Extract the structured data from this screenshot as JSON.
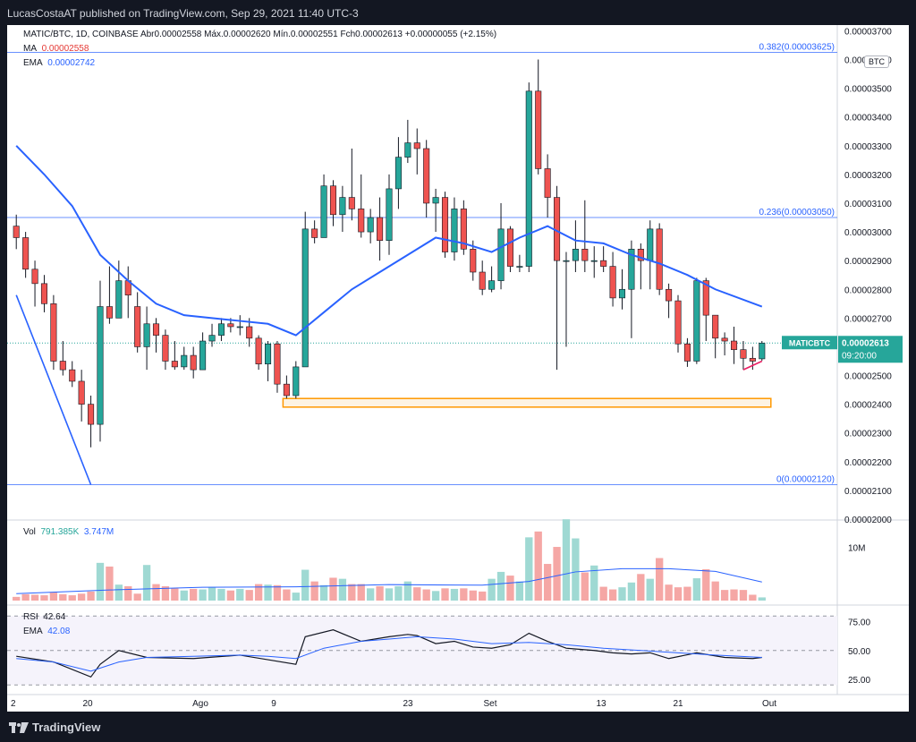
{
  "header": {
    "published": "LucasCostaAT published on TradingView.com, Sep 29, 2021 11:40 UTC-3"
  },
  "footer": {
    "brand": "TradingView"
  },
  "legend": {
    "line1": "MATIC/BTC, 1D, COINBASE  Abr0.00002558  Máx.0.00002620  Mín.0.00002551  Fch0.00002613  +0.00000055 (+2.15%)",
    "ma_label": "MA",
    "ma_value": "0.00002558",
    "ema_label": "EMA",
    "ema_value": "0.00002742",
    "vol_label": "Vol",
    "vol_value1": "791.385K",
    "vol_value2": "3.747M",
    "rsi_label": "RSI",
    "rsi_value": "42.64",
    "rsi_ema_label": "EMA",
    "rsi_ema_value": "42.08"
  },
  "currency": "BTC",
  "price_tag": {
    "symbol": "MATICBTC",
    "price": "0.00002613",
    "countdown": "09:20:00"
  },
  "fib_labels": [
    "0.382(0.00003625)",
    "0.236(0.00003050)",
    "0(0.00002120)"
  ],
  "price_ticks": [
    "0.00003700",
    "0.00003600",
    "0.00003500",
    "0.00003400",
    "0.00003300",
    "0.00003200",
    "0.00003100",
    "0.00003000",
    "0.00002900",
    "0.00002800",
    "0.00002700",
    "0.00002600",
    "0.00002500",
    "0.00002400",
    "0.00002300",
    "0.00002200",
    "0.00002100",
    "0.00002000"
  ],
  "vol_tick": "10M",
  "rsi_ticks": [
    "75.00",
    "50.00",
    "25.00"
  ],
  "date_ticks": [
    "2",
    "20",
    "Ago",
    "9",
    "23",
    "Set",
    "13",
    "21",
    "Out"
  ],
  "colors": {
    "up": "#26a69a",
    "down": "#ef5350",
    "ema": "#2962ff",
    "fib": "#2962ff",
    "zone": "#ff9800",
    "trend": "#e91e63",
    "rsi": "#131722"
  },
  "chart_data": {
    "type": "candlestick",
    "pair": "MATIC/BTC",
    "timeframe": "1D",
    "ylim": [
      2e-05,
      3.72e-05
    ],
    "fib_levels": [
      3.625e-05,
      3.05e-05,
      2.12e-05
    ],
    "support_zone": [
      2.39e-05,
      2.42e-05
    ],
    "last_close": 2.613e-05,
    "candles": [
      [
        3.02,
        2.98,
        3.06,
        2.94
      ],
      [
        2.98,
        2.87,
        3.0,
        2.84
      ],
      [
        2.87,
        2.82,
        2.9,
        2.74
      ],
      [
        2.82,
        2.75,
        2.85,
        2.72
      ],
      [
        2.75,
        2.55,
        2.78,
        2.52
      ],
      [
        2.55,
        2.52,
        2.62,
        2.5
      ],
      [
        2.52,
        2.48,
        2.55,
        2.46
      ],
      [
        2.48,
        2.4,
        2.52,
        2.34
      ],
      [
        2.4,
        2.33,
        2.43,
        2.25
      ],
      [
        2.33,
        2.74,
        2.83,
        2.27
      ],
      [
        2.74,
        2.7,
        2.88,
        2.68
      ],
      [
        2.7,
        2.83,
        2.9,
        2.7
      ],
      [
        2.83,
        2.78,
        2.88,
        2.7
      ],
      [
        2.74,
        2.6,
        2.79,
        2.58
      ],
      [
        2.6,
        2.68,
        2.74,
        2.52
      ],
      [
        2.68,
        2.64,
        2.7,
        2.58
      ],
      [
        2.64,
        2.55,
        2.66,
        2.52
      ],
      [
        2.55,
        2.53,
        2.62,
        2.52
      ],
      [
        2.53,
        2.57,
        2.6,
        2.52
      ],
      [
        2.57,
        2.52,
        2.6,
        2.49
      ],
      [
        2.52,
        2.62,
        2.65,
        2.52
      ],
      [
        2.62,
        2.64,
        2.68,
        2.6
      ],
      [
        2.64,
        2.68,
        2.7,
        2.62
      ],
      [
        2.68,
        2.67,
        2.7,
        2.65
      ],
      [
        2.67,
        2.67,
        2.71,
        2.64
      ],
      [
        2.67,
        2.63,
        2.7,
        2.6
      ],
      [
        2.63,
        2.54,
        2.64,
        2.52
      ],
      [
        2.54,
        2.61,
        2.62,
        2.48
      ],
      [
        2.61,
        2.47,
        2.62,
        2.44
      ],
      [
        2.47,
        2.43,
        2.5,
        2.42
      ],
      [
        2.43,
        2.53,
        2.55,
        2.42
      ],
      [
        2.53,
        3.01,
        3.07,
        2.9
      ],
      [
        3.01,
        2.98,
        3.04,
        2.96
      ],
      [
        2.98,
        3.16,
        3.2,
        2.99
      ],
      [
        3.16,
        3.06,
        3.18,
        3.02
      ],
      [
        3.06,
        3.12,
        3.16,
        3.0
      ],
      [
        3.12,
        3.08,
        3.29,
        3.04
      ],
      [
        3.08,
        3.0,
        3.2,
        2.98
      ],
      [
        3.0,
        3.05,
        3.08,
        2.96
      ],
      [
        3.05,
        2.97,
        3.12,
        2.9
      ],
      [
        2.97,
        3.15,
        3.2,
        2.92
      ],
      [
        3.15,
        3.26,
        3.33,
        3.08
      ],
      [
        3.26,
        3.31,
        3.39,
        3.24
      ],
      [
        3.31,
        3.29,
        3.36,
        3.2
      ],
      [
        3.29,
        3.1,
        3.32,
        3.05
      ],
      [
        3.1,
        3.12,
        3.15,
        3.0
      ],
      [
        3.12,
        2.93,
        3.14,
        2.91
      ],
      [
        2.93,
        3.08,
        3.12,
        2.9
      ],
      [
        3.08,
        2.94,
        3.11,
        2.92
      ],
      [
        2.94,
        2.86,
        2.97,
        2.83
      ],
      [
        2.86,
        2.8,
        2.9,
        2.78
      ],
      [
        2.8,
        2.83,
        2.88,
        2.79
      ],
      [
        2.83,
        3.01,
        3.1,
        2.8
      ],
      [
        3.01,
        2.88,
        3.02,
        2.86
      ],
      [
        2.88,
        2.88,
        2.92,
        2.86
      ],
      [
        2.88,
        3.49,
        3.52,
        2.86
      ],
      [
        3.49,
        3.22,
        3.6,
        3.2
      ],
      [
        3.22,
        3.12,
        3.27,
        3.05
      ],
      [
        3.12,
        2.9,
        3.16,
        2.52
      ],
      [
        2.9,
        2.9,
        2.93,
        2.6
      ],
      [
        2.9,
        2.94,
        3.04,
        2.86
      ],
      [
        2.94,
        2.9,
        3.11,
        2.86
      ],
      [
        2.9,
        2.9,
        2.95,
        2.84
      ],
      [
        2.9,
        2.88,
        2.95,
        2.86
      ],
      [
        2.88,
        2.77,
        2.93,
        2.74
      ],
      [
        2.77,
        2.8,
        2.87,
        2.73
      ],
      [
        2.8,
        2.94,
        2.97,
        2.63
      ],
      [
        2.94,
        2.9,
        2.96,
        2.8
      ],
      [
        2.9,
        3.01,
        3.04,
        2.8
      ],
      [
        3.01,
        2.8,
        3.03,
        2.78
      ],
      [
        2.8,
        2.76,
        2.82,
        2.7
      ],
      [
        2.76,
        2.61,
        2.78,
        2.58
      ],
      [
        2.61,
        2.55,
        2.63,
        2.53
      ],
      [
        2.55,
        2.83,
        2.84,
        2.54
      ],
      [
        2.83,
        2.71,
        2.84,
        2.62
      ],
      [
        2.71,
        2.63,
        2.71,
        2.56
      ],
      [
        2.63,
        2.62,
        2.65,
        2.57
      ],
      [
        2.62,
        2.59,
        2.67,
        2.54
      ],
      [
        2.59,
        2.56,
        2.62,
        2.52
      ],
      [
        2.56,
        2.55,
        2.6,
        2.52
      ],
      [
        2.558,
        2.613,
        2.62,
        2.551
      ]
    ],
    "ema_line": [
      [
        0,
        3.3
      ],
      [
        3,
        3.2
      ],
      [
        6,
        3.09
      ],
      [
        9,
        2.92
      ],
      [
        12,
        2.83
      ],
      [
        15,
        2.75
      ],
      [
        18,
        2.71
      ],
      [
        21,
        2.7
      ],
      [
        24,
        2.69
      ],
      [
        27,
        2.68
      ],
      [
        30,
        2.64
      ],
      [
        33,
        2.72
      ],
      [
        36,
        2.8
      ],
      [
        39,
        2.86
      ],
      [
        42,
        2.92
      ],
      [
        45,
        2.98
      ],
      [
        48,
        2.96
      ],
      [
        51,
        2.93
      ],
      [
        54,
        2.98
      ],
      [
        57,
        3.02
      ],
      [
        60,
        2.97
      ],
      [
        63,
        2.96
      ],
      [
        66,
        2.92
      ],
      [
        69,
        2.89
      ],
      [
        72,
        2.85
      ],
      [
        75,
        2.8
      ],
      [
        80,
        2.74
      ]
    ],
    "fall_line": [
      [
        0,
        2.78
      ],
      [
        8,
        2.12
      ]
    ],
    "trend_line": [
      [
        78,
        2.52
      ],
      [
        80,
        2.55
      ]
    ],
    "volume_levels": [
      0.7,
      1.2,
      1.1,
      1.0,
      1.5,
      1.2,
      1.0,
      1.3,
      1.7,
      7.1,
      6.4,
      3.0,
      2.7,
      1.3,
      6.7,
      3.1,
      2.7,
      2.3,
      1.9,
      2.2,
      2.1,
      2.5,
      2.2,
      1.9,
      2.2,
      2.0,
      3.1,
      3.0,
      2.9,
      2.1,
      1.5,
      5.8,
      3.6,
      2.9,
      4.3,
      4.1,
      3.1,
      3.1,
      2.3,
      2.7,
      2.3,
      2.7,
      3.6,
      2.5,
      2.1,
      1.8,
      2.3,
      2.2,
      2.3,
      1.9,
      1.7,
      4.1,
      5.4,
      4.7,
      3.6,
      11.9,
      13.0,
      6.9,
      10.1,
      15.3,
      11.7,
      5.3,
      6.6,
      2.6,
      2.1,
      2.5,
      3.4,
      5.0,
      4.1,
      8.0,
      3.0,
      2.5,
      2.6,
      4.2,
      5.9,
      3.6,
      2.0,
      2.1,
      2.0,
      1.1,
      0.6
    ],
    "volume_ma": [
      [
        0,
        1.3
      ],
      [
        10,
        2.0
      ],
      [
        20,
        2.5
      ],
      [
        30,
        2.6
      ],
      [
        40,
        3.0
      ],
      [
        50,
        2.9
      ],
      [
        55,
        3.6
      ],
      [
        60,
        5.4
      ],
      [
        65,
        6.0
      ],
      [
        70,
        6.0
      ],
      [
        75,
        5.5
      ],
      [
        80,
        3.5
      ]
    ],
    "rsi": [
      [
        0,
        45
      ],
      [
        4,
        40
      ],
      [
        8,
        27
      ],
      [
        9,
        38
      ],
      [
        11,
        50
      ],
      [
        14,
        44
      ],
      [
        19,
        43
      ],
      [
        24,
        46
      ],
      [
        27,
        42
      ],
      [
        30,
        38
      ],
      [
        31,
        62
      ],
      [
        34,
        68
      ],
      [
        37,
        58
      ],
      [
        40,
        62
      ],
      [
        42,
        64
      ],
      [
        43,
        63
      ],
      [
        45,
        56
      ],
      [
        47,
        58
      ],
      [
        49,
        53
      ],
      [
        51,
        52
      ],
      [
        53,
        55
      ],
      [
        55,
        65
      ],
      [
        57,
        58
      ],
      [
        59,
        52
      ],
      [
        62,
        50
      ],
      [
        64,
        48
      ],
      [
        66,
        47
      ],
      [
        68,
        48
      ],
      [
        70,
        43
      ],
      [
        73,
        48
      ],
      [
        76,
        44
      ],
      [
        79,
        43
      ],
      [
        80,
        44
      ]
    ],
    "rsi_ema": [
      [
        0,
        43
      ],
      [
        4,
        40
      ],
      [
        8,
        32
      ],
      [
        11,
        40
      ],
      [
        14,
        44
      ],
      [
        19,
        45
      ],
      [
        24,
        46
      ],
      [
        27,
        45
      ],
      [
        30,
        43
      ],
      [
        33,
        52
      ],
      [
        37,
        58
      ],
      [
        40,
        60
      ],
      [
        43,
        62
      ],
      [
        47,
        60
      ],
      [
        51,
        56
      ],
      [
        55,
        57
      ],
      [
        59,
        55
      ],
      [
        63,
        52
      ],
      [
        67,
        50
      ],
      [
        71,
        48
      ],
      [
        75,
        46
      ],
      [
        80,
        44
      ]
    ],
    "rsi_ylim": [
      14,
      88
    ],
    "vol_ylim": [
      0,
      16
    ]
  }
}
